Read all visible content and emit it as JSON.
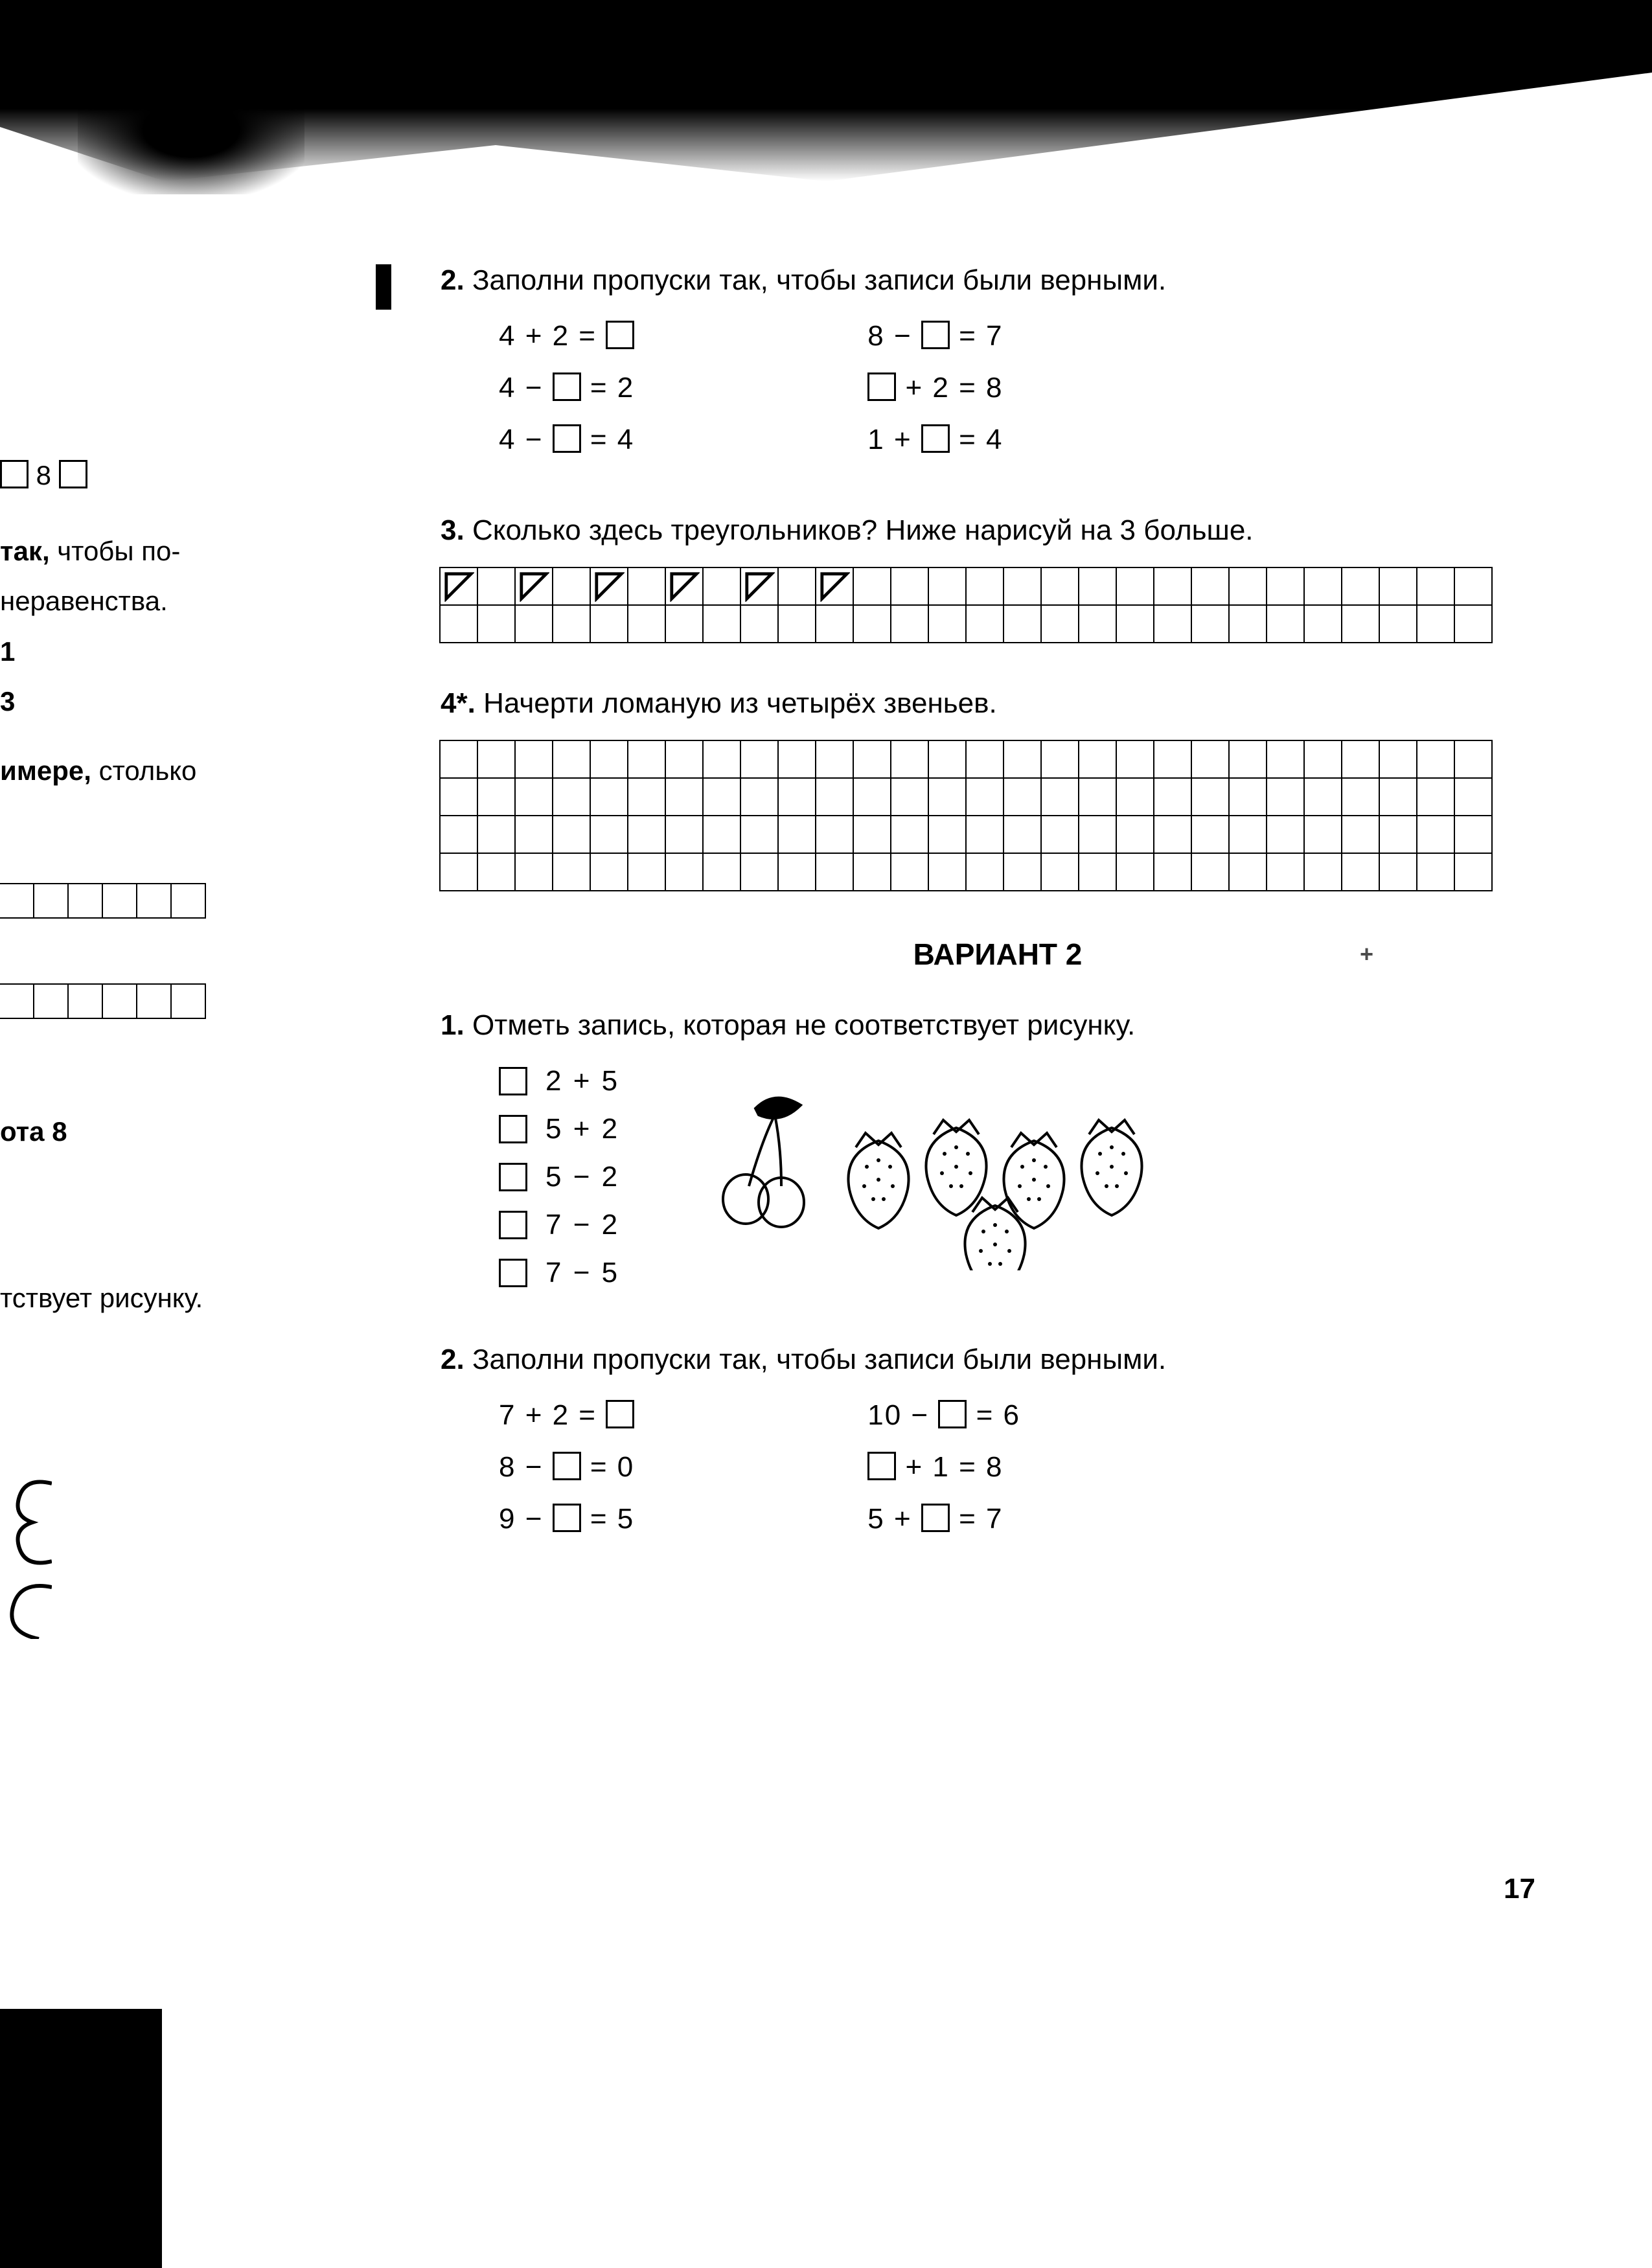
{
  "page_number": "17",
  "left_page_fragments": {
    "line_8": "8",
    "line_tak": "так,",
    "line_chtoby": "чтобы по-",
    "line_nerav": "неравенства.",
    "line_1": "1",
    "line_3": "3",
    "line_imere": "имере,",
    "line_stolko": "столько",
    "line_ota8": "ота 8",
    "line_stvuet": "тствует рисунку."
  },
  "task2": {
    "num": "2.",
    "text": "Заполни пропуски так, чтобы записи были верными.",
    "col1": [
      "4 + 2 =",
      "4 −",
      "4 −"
    ],
    "col1_tail": [
      "",
      " = 2",
      " = 4"
    ],
    "col2": [
      "8 −",
      "",
      "1 +"
    ],
    "col2_tail": [
      " = 7",
      " + 2 = 8",
      " = 4"
    ]
  },
  "task3": {
    "num": "3.",
    "text": "Сколько здесь треугольников? Ниже нарисуй на 3 больше.",
    "triangles_count": 6,
    "grid_cols": 28,
    "grid_rows": 2
  },
  "task4": {
    "num": "4*.",
    "text": "Начерти ломаную из четырёх звеньев.",
    "grid_cols": 28,
    "grid_rows": 4
  },
  "variant2": {
    "heading": "ВАРИАНТ 2",
    "mark": "+"
  },
  "v2_task1": {
    "num": "1.",
    "text": "Отметь запись, которая не соответствует рисунку.",
    "choices": [
      "2 + 5",
      "5 + 2",
      "5 − 2",
      "7 − 2",
      "7 − 5"
    ],
    "cherries": 2,
    "strawberries": 5
  },
  "v2_task2": {
    "num": "2.",
    "text": "Заполни пропуски так, чтобы записи были верными.",
    "col1_pre": [
      "7 + 2 =",
      "8 −",
      "9 −"
    ],
    "col1_suf": [
      "",
      " = 0",
      " = 5"
    ],
    "col2_pre": [
      "10 −",
      "",
      "5 +"
    ],
    "col2_suf": [
      " = 6",
      " + 1 = 8",
      " = 7"
    ]
  }
}
